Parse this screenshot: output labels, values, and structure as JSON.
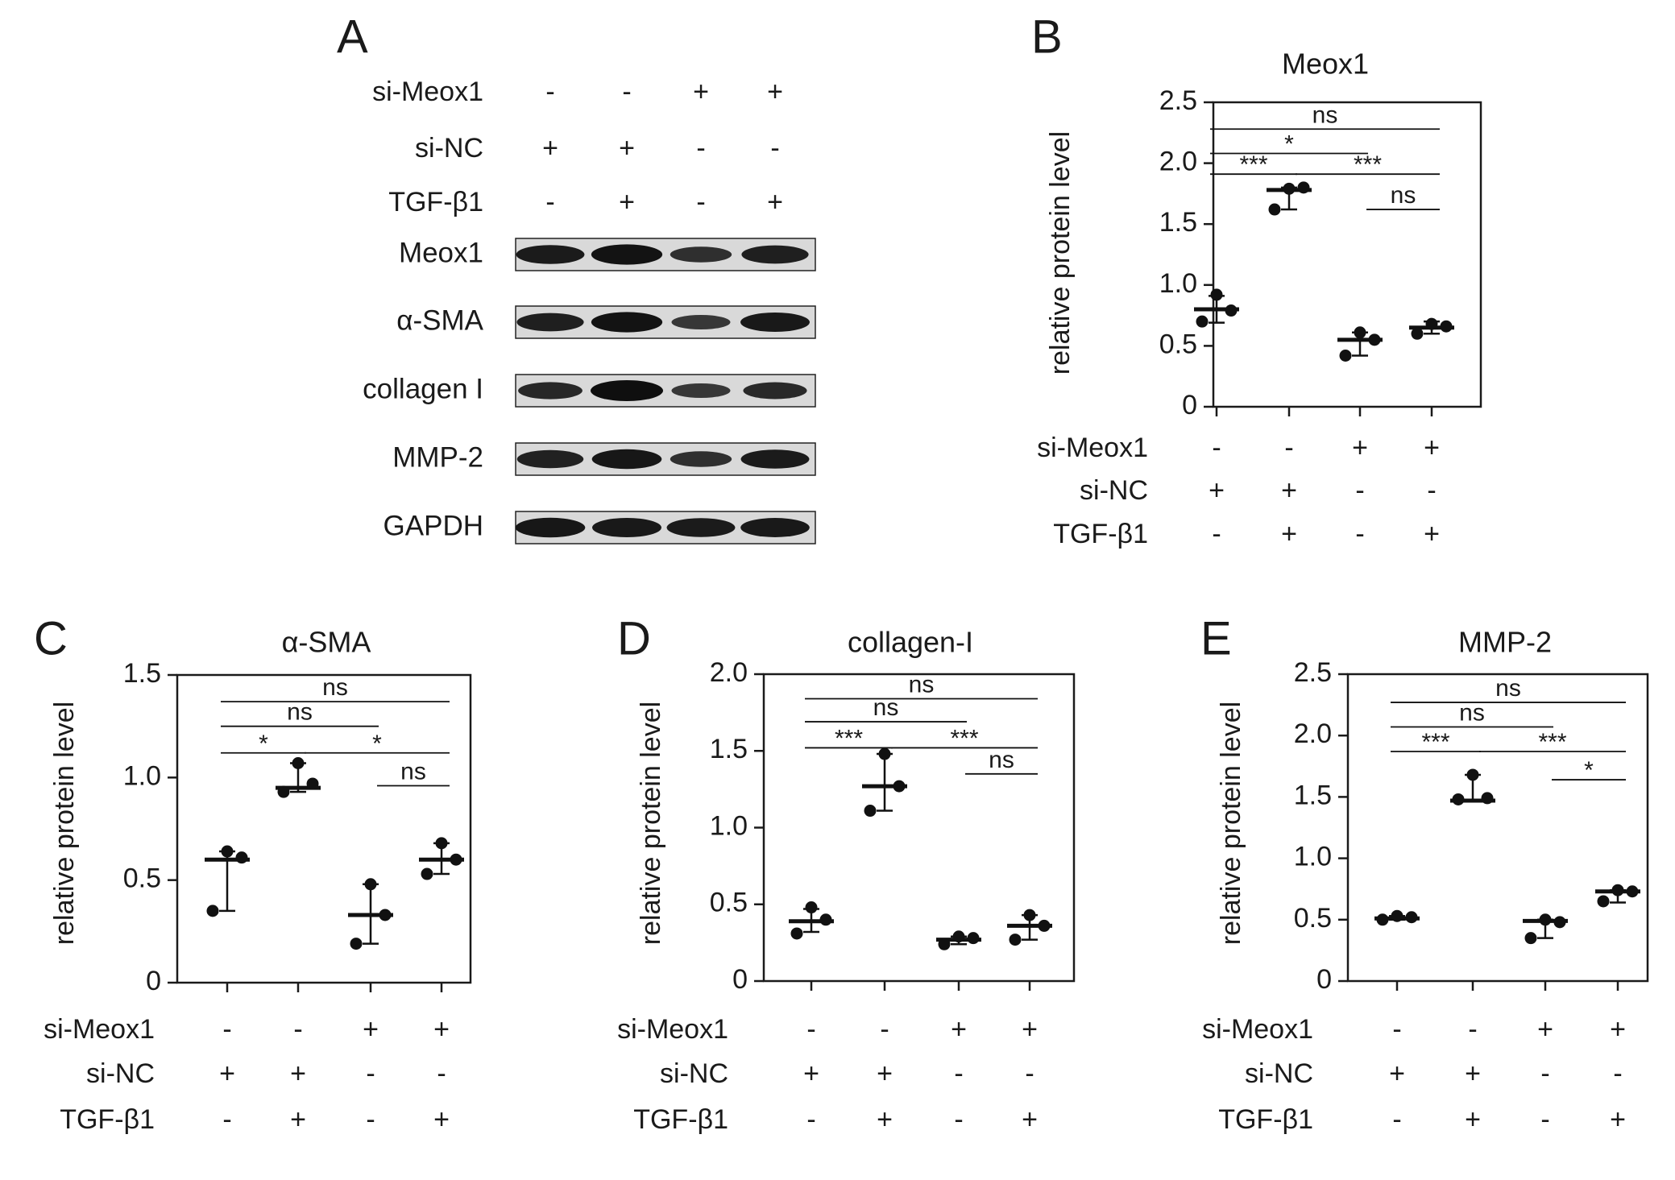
{
  "panel_letters": [
    "A",
    "B",
    "C",
    "D",
    "E"
  ],
  "conditions": {
    "rows": [
      {
        "label": "si-Meox1",
        "signs": [
          "-",
          "-",
          "+",
          "+"
        ]
      },
      {
        "label": "si-NC",
        "signs": [
          "+",
          "+",
          "-",
          "-"
        ]
      },
      {
        "label": "TGF-β1",
        "signs": [
          "-",
          "+",
          "-",
          "+"
        ]
      }
    ]
  },
  "blot": {
    "panel": "A",
    "bands": [
      {
        "label": "Meox1",
        "intensity": [
          0.85,
          0.95,
          0.6,
          0.8
        ]
      },
      {
        "label": "α-SMA",
        "intensity": [
          0.8,
          0.95,
          0.5,
          0.88
        ]
      },
      {
        "label": "collagen I",
        "intensity": [
          0.7,
          1.0,
          0.5,
          0.68
        ]
      },
      {
        "label": "MMP-2",
        "intensity": [
          0.78,
          0.9,
          0.6,
          0.85
        ]
      },
      {
        "label": "GAPDH",
        "intensity": [
          0.9,
          0.88,
          0.85,
          0.87
        ]
      }
    ]
  },
  "chart_data": [
    {
      "panel": "B",
      "type": "scatter",
      "title": "Meox1",
      "ylabel": "relative protein level",
      "ylim": [
        0,
        2.5
      ],
      "yticks": [
        0,
        0.5,
        1.0,
        1.5,
        2.0,
        2.5
      ],
      "ytick_labels": [
        "0",
        "0.5",
        "1.0",
        "1.5",
        "2.0",
        "2.5"
      ],
      "groups": [
        {
          "points": [
            0.92,
            0.79,
            0.7
          ],
          "mean": 0.8,
          "err": [
            0.69,
            0.91
          ]
        },
        {
          "points": [
            1.79,
            1.8,
            1.62
          ],
          "mean": 1.78,
          "err": [
            1.62,
            1.8
          ]
        },
        {
          "points": [
            0.61,
            0.55,
            0.42
          ],
          "mean": 0.55,
          "err": [
            0.42,
            0.61
          ]
        },
        {
          "points": [
            0.68,
            0.66,
            0.6
          ],
          "mean": 0.65,
          "err": [
            0.6,
            0.7
          ]
        }
      ],
      "comparisons": [
        {
          "g1": 1,
          "g2": 2,
          "label": "***",
          "y": 1.91
        },
        {
          "g1": 2,
          "g2": 4,
          "label": "***",
          "y": 1.91
        },
        {
          "g1": 1,
          "g2": 3,
          "label": "*",
          "y": 2.08
        },
        {
          "g1": 1,
          "g2": 4,
          "label": "ns",
          "y": 2.28
        },
        {
          "g1": 3,
          "g2": 4,
          "label": "ns",
          "y": 1.62
        }
      ]
    },
    {
      "panel": "C",
      "type": "scatter",
      "title": "α-SMA",
      "ylabel": "relative protein level",
      "ylim": [
        0,
        1.5
      ],
      "yticks": [
        0,
        0.5,
        1.0,
        1.5
      ],
      "ytick_labels": [
        "0",
        "0.5",
        "1.0",
        "1.5"
      ],
      "groups": [
        {
          "points": [
            0.64,
            0.61,
            0.35
          ],
          "mean": 0.6,
          "err": [
            0.35,
            0.64
          ]
        },
        {
          "points": [
            1.07,
            0.97,
            0.93
          ],
          "mean": 0.95,
          "err": [
            0.93,
            1.07
          ]
        },
        {
          "points": [
            0.48,
            0.33,
            0.19
          ],
          "mean": 0.33,
          "err": [
            0.19,
            0.48
          ]
        },
        {
          "points": [
            0.68,
            0.6,
            0.53
          ],
          "mean": 0.6,
          "err": [
            0.53,
            0.68
          ]
        }
      ],
      "comparisons": [
        {
          "g1": 1,
          "g2": 2,
          "label": "*",
          "y": 1.12
        },
        {
          "g1": 2,
          "g2": 4,
          "label": "*",
          "y": 1.12
        },
        {
          "g1": 1,
          "g2": 3,
          "label": "ns",
          "y": 1.25
        },
        {
          "g1": 1,
          "g2": 4,
          "label": "ns",
          "y": 1.37
        },
        {
          "g1": 3,
          "g2": 4,
          "label": "ns",
          "y": 0.96
        }
      ]
    },
    {
      "panel": "D",
      "type": "scatter",
      "title": "collagen-I",
      "ylabel": "relative protein level",
      "ylim": [
        0,
        2.0
      ],
      "yticks": [
        0,
        0.5,
        1.0,
        1.5,
        2.0
      ],
      "ytick_labels": [
        "0",
        "0.5",
        "1.0",
        "1.5",
        "2.0"
      ],
      "groups": [
        {
          "points": [
            0.48,
            0.4,
            0.31
          ],
          "mean": 0.39,
          "err": [
            0.32,
            0.47
          ]
        },
        {
          "points": [
            1.48,
            1.27,
            1.11
          ],
          "mean": 1.27,
          "err": [
            1.11,
            1.48
          ]
        },
        {
          "points": [
            0.29,
            0.28,
            0.24
          ],
          "mean": 0.27,
          "err": [
            0.24,
            0.29
          ]
        },
        {
          "points": [
            0.43,
            0.36,
            0.27
          ],
          "mean": 0.36,
          "err": [
            0.27,
            0.43
          ]
        }
      ],
      "comparisons": [
        {
          "g1": 1,
          "g2": 2,
          "label": "***",
          "y": 1.52
        },
        {
          "g1": 2,
          "g2": 4,
          "label": "***",
          "y": 1.52
        },
        {
          "g1": 1,
          "g2": 3,
          "label": "ns",
          "y": 1.69
        },
        {
          "g1": 1,
          "g2": 4,
          "label": "ns",
          "y": 1.84
        },
        {
          "g1": 3,
          "g2": 4,
          "label": "ns",
          "y": 1.35
        }
      ]
    },
    {
      "panel": "E",
      "type": "scatter",
      "title": "MMP-2",
      "ylabel": "relative protein level",
      "ylim": [
        0,
        2.5
      ],
      "yticks": [
        0,
        0.5,
        1.0,
        1.5,
        2.0,
        2.5
      ],
      "ytick_labels": [
        "0",
        "0.5",
        "1.0",
        "1.5",
        "2.0",
        "2.5"
      ],
      "groups": [
        {
          "points": [
            0.53,
            0.52,
            0.5
          ],
          "mean": 0.51,
          "err": [
            0.5,
            0.53
          ]
        },
        {
          "points": [
            1.68,
            1.49,
            1.48
          ],
          "mean": 1.47,
          "err": [
            1.47,
            1.68
          ]
        },
        {
          "points": [
            0.5,
            0.48,
            0.35
          ],
          "mean": 0.49,
          "err": [
            0.35,
            0.5
          ]
        },
        {
          "points": [
            0.74,
            0.73,
            0.65
          ],
          "mean": 0.73,
          "err": [
            0.64,
            0.74
          ]
        }
      ],
      "comparisons": [
        {
          "g1": 1,
          "g2": 2,
          "label": "***",
          "y": 1.87
        },
        {
          "g1": 2,
          "g2": 4,
          "label": "***",
          "y": 1.87
        },
        {
          "g1": 1,
          "g2": 3,
          "label": "ns",
          "y": 2.07
        },
        {
          "g1": 1,
          "g2": 4,
          "label": "ns",
          "y": 2.27
        },
        {
          "g1": 3,
          "g2": 4,
          "label": "*",
          "y": 1.64
        }
      ]
    }
  ]
}
